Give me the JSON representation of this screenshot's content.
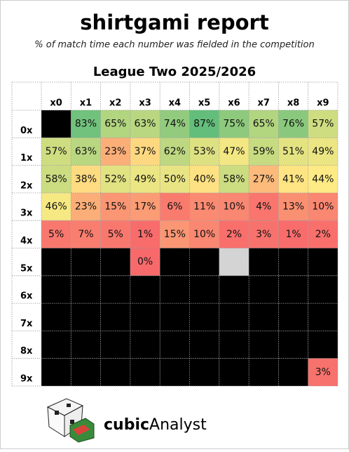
{
  "chart_data": {
    "type": "heatmap",
    "title": "shirtgami report",
    "subtitle": "% of match time each number was fielded in the competition",
    "chart_title": "League Two 2025/2026",
    "x_categories": [
      "x0",
      "x1",
      "x2",
      "x3",
      "x4",
      "x5",
      "x6",
      "x7",
      "x8",
      "x9"
    ],
    "y_categories": [
      "0x",
      "1x",
      "2x",
      "3x",
      "4x",
      "5x",
      "6x",
      "7x",
      "8x",
      "9x"
    ],
    "values": [
      [
        null,
        83,
        65,
        63,
        74,
        87,
        75,
        65,
        76,
        57
      ],
      [
        57,
        63,
        23,
        37,
        62,
        53,
        47,
        59,
        51,
        49
      ],
      [
        58,
        38,
        52,
        49,
        50,
        40,
        58,
        27,
        41,
        44
      ],
      [
        46,
        23,
        15,
        17,
        6,
        11,
        10,
        4,
        13,
        10
      ],
      [
        5,
        7,
        5,
        1,
        15,
        10,
        2,
        3,
        1,
        2
      ],
      [
        null,
        null,
        null,
        0,
        null,
        null,
        null,
        null,
        null,
        null
      ],
      [
        null,
        null,
        null,
        null,
        null,
        null,
        null,
        null,
        null,
        null
      ],
      [
        null,
        null,
        null,
        null,
        null,
        null,
        null,
        null,
        null,
        null
      ],
      [
        null,
        null,
        null,
        null,
        null,
        null,
        null,
        null,
        null,
        null
      ],
      [
        null,
        null,
        null,
        null,
        null,
        null,
        null,
        null,
        null,
        3
      ]
    ],
    "value_labels": [
      [
        null,
        "83%",
        "65%",
        "63%",
        "74%",
        "87%",
        "75%",
        "65%",
        "76%",
        "57%"
      ],
      [
        "57%",
        "63%",
        "23%",
        "37%",
        "62%",
        "53%",
        "47%",
        "59%",
        "51%",
        "49%"
      ],
      [
        "58%",
        "38%",
        "52%",
        "49%",
        "50%",
        "40%",
        "58%",
        "27%",
        "41%",
        "44%"
      ],
      [
        "46%",
        "23%",
        "15%",
        "17%",
        "6%",
        "11%",
        "10%",
        "4%",
        "13%",
        "10%"
      ],
      [
        "5%",
        "7%",
        "5%",
        "1%",
        "15%",
        "10%",
        "2%",
        "3%",
        "1%",
        "2%"
      ],
      [
        null,
        null,
        null,
        "0%",
        null,
        null,
        null,
        null,
        null,
        null
      ],
      [
        null,
        null,
        null,
        null,
        null,
        null,
        null,
        null,
        null,
        null
      ],
      [
        null,
        null,
        null,
        null,
        null,
        null,
        null,
        null,
        null,
        null
      ],
      [
        null,
        null,
        null,
        null,
        null,
        null,
        null,
        null,
        null,
        null
      ],
      [
        null,
        null,
        null,
        null,
        null,
        null,
        null,
        null,
        null,
        "3%"
      ]
    ],
    "color_scale": {
      "low": "#f8696b",
      "mid": "#ffeb84",
      "high": "#63be7b"
    },
    "no_data_color": "#000000",
    "highlight_cells": [
      {
        "row": 5,
        "col": 6,
        "color": "#d4d4d4"
      }
    ],
    "logo": {
      "bold": "cubic",
      "regular": "Analyst"
    }
  }
}
